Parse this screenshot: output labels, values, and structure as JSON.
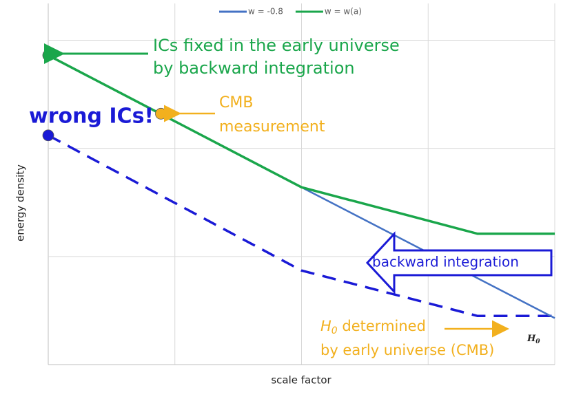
{
  "chart_data": {
    "type": "line",
    "x_label": "scale factor",
    "y_label": "energy density",
    "xlim": [
      0,
      4
    ],
    "xticks": [
      0,
      1,
      2,
      3,
      4
    ],
    "ylim": [
      0,
      3.34
    ],
    "yticks": [
      0,
      1,
      2,
      3
    ],
    "grid": true,
    "legend": "top",
    "series": [
      {
        "name": "w = -0.8",
        "color": "#4472c4",
        "x": [
          0,
          2,
          4
        ],
        "values": [
          2.86,
          1.64,
          0.43
        ]
      },
      {
        "name": "w = w(a)",
        "color": "#1aa64b",
        "x": [
          0,
          2,
          3.39,
          4
        ],
        "values": [
          2.86,
          1.64,
          1.21,
          1.21
        ]
      }
    ],
    "wrong_ic_line": {
      "color": "#1a1ad6",
      "dashed": true,
      "x": [
        0,
        2,
        3.39,
        4
      ],
      "values": [
        2.12,
        0.87,
        0.45,
        0.45
      ]
    },
    "points": [
      {
        "x": 0,
        "value": 2.86,
        "color": "#1aa64b"
      },
      {
        "x": 0.89,
        "value": 2.32,
        "color": "#f2b01e"
      },
      {
        "x": 0,
        "value": 2.12,
        "color": "#1a1ad6"
      }
    ],
    "annotations": {
      "ics": [
        "ICs fixed in the early universe",
        "by backward integration"
      ],
      "cmb": [
        "CMB",
        "measurement"
      ],
      "wrong": "wrong ICs!",
      "backward": "backward integration",
      "h0_note": {
        "parts": [
          "H",
          "0",
          " determined"
        ],
        "line2": "by early universe (CMB)"
      },
      "h0_label": [
        "H",
        "0"
      ]
    }
  }
}
